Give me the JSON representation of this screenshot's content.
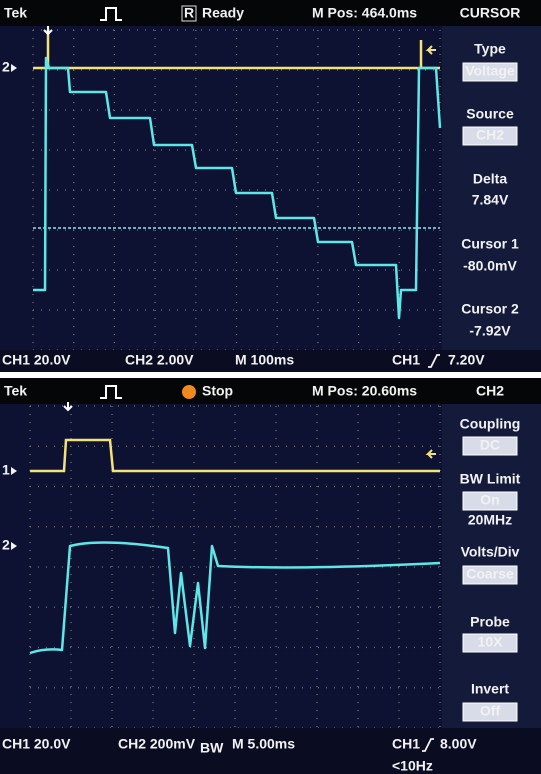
{
  "screens": [
    {
      "header": {
        "brand": "Tek",
        "status_icon": "R",
        "status": "Ready",
        "position": "M Pos: 464.0ms",
        "menu_title": "CURSOR"
      },
      "menu": [
        {
          "label": "Type",
          "values": [
            {
              "text": "Voltage",
              "boxed": true
            }
          ]
        },
        {
          "label": "Source",
          "values": [
            {
              "text": "CH2",
              "boxed": true
            }
          ]
        },
        {
          "label": "Delta",
          "values": [
            {
              "text": "7.84V",
              "boxed": false
            }
          ]
        },
        {
          "label": "Cursor 1",
          "values": [
            {
              "text": "-80.0mV",
              "boxed": false
            }
          ]
        },
        {
          "label": "Cursor 2",
          "values": [
            {
              "text": "-7.92V",
              "boxed": false
            }
          ]
        }
      ],
      "markers": [
        "2"
      ],
      "footer": {
        "ch1": "CH1 20.0V",
        "ch2": "CH2 2.00V",
        "timebase": "M 100ms",
        "trigger_source": "CH1",
        "trigger_level": "7.20V"
      }
    },
    {
      "header": {
        "brand": "Tek",
        "status": "Stop",
        "position": "M Pos: 20.60ms",
        "menu_title": "CH2"
      },
      "menu": [
        {
          "label": "Coupling",
          "values": [
            {
              "text": "DC",
              "boxed": true
            }
          ]
        },
        {
          "label": "BW Limit",
          "values": [
            {
              "text": "On",
              "boxed": true
            },
            {
              "text": "20MHz",
              "boxed": false
            }
          ]
        },
        {
          "label": "Volts/Div",
          "values": [
            {
              "text": "Coarse",
              "boxed": true
            }
          ]
        },
        {
          "label": "Probe",
          "values": [
            {
              "text": "10X",
              "boxed": true
            }
          ]
        },
        {
          "label": "Invert",
          "values": [
            {
              "text": "Off",
              "boxed": true
            }
          ]
        }
      ],
      "markers": [
        "1",
        "2"
      ],
      "footer": {
        "ch1": "CH1 20.0V",
        "ch2": "CH2 200mV",
        "bw": "BW",
        "timebase": "M 5.00ms",
        "trigger_source": "CH1",
        "trigger_level": "8.00V",
        "trigger_freq": "<10Hz"
      }
    }
  ]
}
